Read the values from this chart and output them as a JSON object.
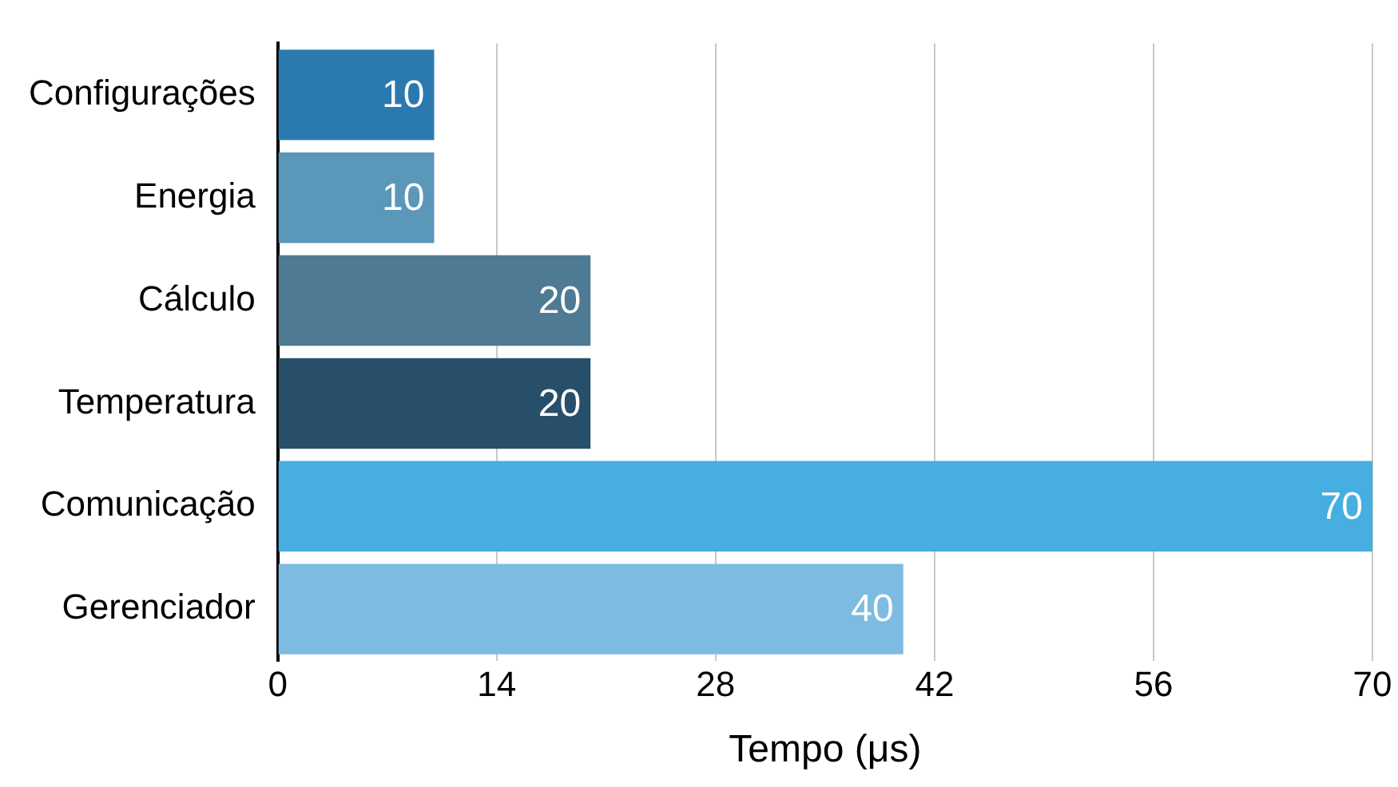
{
  "chart_data": {
    "type": "bar",
    "orientation": "horizontal",
    "xlabel": "Tempo (μs)",
    "categories": [
      "Configurações",
      "Energia",
      "Cálculo",
      "Temperatura",
      "Comunicação",
      "Gerenciador"
    ],
    "values": [
      10,
      10,
      20,
      20,
      70,
      40
    ],
    "colors": [
      "#2a7aaf",
      "#5a97b8",
      "#4f7a93",
      "#274f69",
      "#46aee0",
      "#7dbbe2"
    ],
    "xlim": [
      0,
      70
    ],
    "xticks": [
      0,
      14,
      28,
      42,
      56,
      70
    ],
    "grid": "x",
    "data_labels": true
  }
}
